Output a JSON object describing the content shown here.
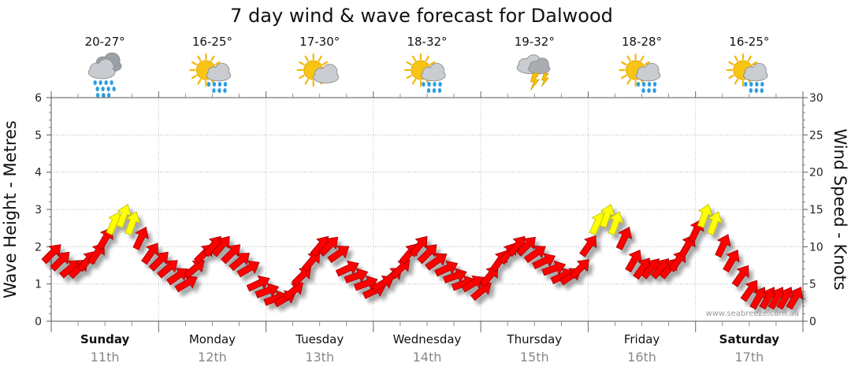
{
  "chart_data": {
    "type": "line",
    "title": "7 day wind & wave forecast for Dalwood",
    "ylabel": "Wave Height - Metres",
    "y2label": "Wind Speed - Knots",
    "ylim": [
      0,
      6
    ],
    "y2lim": [
      0,
      30
    ],
    "yticks": [
      "0",
      "1",
      "2",
      "3",
      "4",
      "5",
      "6"
    ],
    "y2ticks": [
      "0",
      "5",
      "10",
      "15",
      "20",
      "25",
      "30"
    ],
    "grid": true,
    "credit": "www.seabreeze.com.au",
    "days": [
      {
        "name": "Sunday",
        "date": "11th",
        "temp": "20-27°",
        "icon": "rain-cloud-icon",
        "bold": true
      },
      {
        "name": "Monday",
        "date": "12th",
        "temp": "16-25°",
        "icon": "sun-rain-icon",
        "bold": false
      },
      {
        "name": "Tuesday",
        "date": "13th",
        "temp": "17-30°",
        "icon": "partly-cloudy-icon",
        "bold": false
      },
      {
        "name": "Wednesday",
        "date": "14th",
        "temp": "18-32°",
        "icon": "sun-rain-icon",
        "bold": false
      },
      {
        "name": "Thursday",
        "date": "15th",
        "temp": "19-32°",
        "icon": "thunderstorm-icon",
        "bold": false
      },
      {
        "name": "Friday",
        "date": "16th",
        "temp": "18-28°",
        "icon": "sun-rain-icon",
        "bold": false
      },
      {
        "name": "Saturday",
        "date": "17th",
        "temp": "16-25°",
        "icon": "sun-rain-icon",
        "bold": true
      }
    ],
    "wind_series": {
      "name": "Wind speed (knots)",
      "x_unit": "days from Sunday 00:00",
      "x": [
        0.0,
        0.08,
        0.17,
        0.25,
        0.33,
        0.42,
        0.5,
        0.58,
        0.67,
        0.75,
        0.83,
        0.92,
        1.0,
        1.08,
        1.17,
        1.25,
        1.33,
        1.42,
        1.5,
        1.58,
        1.67,
        1.75,
        1.83,
        1.92,
        2.0,
        2.08,
        2.17,
        2.25,
        2.33,
        2.42,
        2.5,
        2.58,
        2.67,
        2.75,
        2.83,
        2.92,
        3.0,
        3.08,
        3.17,
        3.25,
        3.33,
        3.42,
        3.5,
        3.58,
        3.67,
        3.75,
        3.83,
        3.92,
        4.0,
        4.08,
        4.17,
        4.25,
        4.33,
        4.42,
        4.5,
        4.58,
        4.67,
        4.75,
        4.83,
        4.92,
        5.0,
        5.08,
        5.17,
        5.25,
        5.33,
        5.42,
        5.5,
        5.58,
        5.67,
        5.75,
        5.83,
        5.92,
        6.0,
        6.08,
        6.17,
        6.25,
        6.33,
        6.42,
        6.5,
        6.58,
        6.67,
        6.75,
        6.83,
        6.92
      ],
      "y": [
        9,
        8,
        7,
        7,
        8,
        9,
        11,
        13,
        14,
        13,
        11,
        9,
        8,
        7,
        6,
        5,
        7,
        9,
        10,
        10,
        9,
        8,
        7,
        5,
        4,
        3,
        3,
        4,
        6,
        8,
        10,
        10,
        9,
        7,
        6,
        5,
        4,
        5,
        6,
        7,
        9,
        10,
        9,
        8,
        7,
        6,
        5,
        5,
        4,
        6,
        8,
        9,
        10,
        10,
        9,
        8,
        7,
        6,
        6,
        7,
        10,
        13,
        14,
        13,
        11,
        8,
        7,
        7,
        7,
        7,
        8,
        10,
        12,
        14,
        13,
        10,
        8,
        6,
        4,
        3,
        3,
        3,
        3,
        3
      ],
      "directions_deg": [
        225,
        225,
        230,
        225,
        220,
        215,
        210,
        205,
        200,
        200,
        205,
        215,
        225,
        230,
        235,
        240,
        230,
        225,
        220,
        220,
        225,
        230,
        240,
        245,
        250,
        250,
        240,
        230,
        225,
        220,
        220,
        225,
        235,
        245,
        250,
        250,
        245,
        240,
        230,
        225,
        220,
        220,
        225,
        235,
        245,
        250,
        250,
        240,
        230,
        220,
        215,
        215,
        220,
        225,
        235,
        245,
        250,
        245,
        235,
        225,
        215,
        205,
        200,
        200,
        205,
        210,
        215,
        220,
        220,
        220,
        215,
        210,
        205,
        200,
        200,
        205,
        210,
        215,
        215,
        210,
        210,
        210,
        210,
        210
      ]
    }
  }
}
